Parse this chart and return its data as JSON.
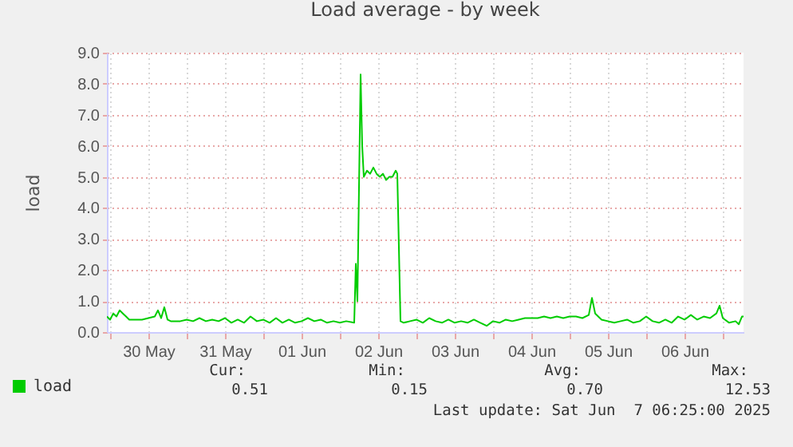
{
  "chart_data": {
    "type": "line",
    "title": "Load average - by week",
    "ylabel": "load",
    "x": [
      "2025-05-29T23:00",
      "2025-05-30T00:00",
      "2025-05-30T01:00",
      "2025-05-30T02:00",
      "2025-05-30T03:00",
      "2025-05-30T04:00",
      "2025-05-30T05:00",
      "2025-05-30T06:00",
      "2025-05-30T08:00",
      "2025-05-30T10:00",
      "2025-05-30T12:00",
      "2025-05-30T14:00",
      "2025-05-30T15:00",
      "2025-05-30T16:00",
      "2025-05-30T17:00",
      "2025-05-30T18:00",
      "2025-05-30T19:00",
      "2025-05-30T22:00",
      "2025-05-31T00:00",
      "2025-05-31T02:00",
      "2025-05-31T04:00",
      "2025-05-31T06:00",
      "2025-05-31T08:00",
      "2025-05-31T10:00",
      "2025-05-31T12:00",
      "2025-05-31T14:00",
      "2025-05-31T16:00",
      "2025-05-31T18:00",
      "2025-05-31T20:00",
      "2025-05-31T22:00",
      "2025-06-01T00:00",
      "2025-06-01T02:00",
      "2025-06-01T04:00",
      "2025-06-01T06:00",
      "2025-06-01T08:00",
      "2025-06-01T10:00",
      "2025-06-01T12:00",
      "2025-06-01T14:00",
      "2025-06-01T16:00",
      "2025-06-01T18:00",
      "2025-06-01T20:00",
      "2025-06-01T22:00",
      "2025-06-02T00:00",
      "2025-06-02T02:00",
      "2025-06-02T04:30",
      "2025-06-02T05:00",
      "2025-06-02T05:30",
      "2025-06-02T06:30",
      "2025-06-02T07:00",
      "2025-06-02T07:30",
      "2025-06-02T08:30",
      "2025-06-02T09:30",
      "2025-06-02T10:30",
      "2025-06-02T11:30",
      "2025-06-02T12:30",
      "2025-06-02T13:30",
      "2025-06-02T14:30",
      "2025-06-02T15:30",
      "2025-06-02T16:30",
      "2025-06-02T17:30",
      "2025-06-02T18:00",
      "2025-06-02T19:00",
      "2025-06-02T20:00",
      "2025-06-02T22:00",
      "2025-06-03T00:00",
      "2025-06-03T02:00",
      "2025-06-03T04:00",
      "2025-06-03T06:00",
      "2025-06-03T08:00",
      "2025-06-03T10:00",
      "2025-06-03T12:00",
      "2025-06-03T14:00",
      "2025-06-03T16:00",
      "2025-06-03T18:00",
      "2025-06-03T20:00",
      "2025-06-03T22:00",
      "2025-06-04T00:00",
      "2025-06-04T02:00",
      "2025-06-04T04:00",
      "2025-06-04T06:00",
      "2025-06-04T08:00",
      "2025-06-04T10:00",
      "2025-06-04T12:00",
      "2025-06-04T14:00",
      "2025-06-04T16:00",
      "2025-06-04T18:00",
      "2025-06-04T20:00",
      "2025-06-04T22:00",
      "2025-06-05T00:00",
      "2025-06-05T02:00",
      "2025-06-05T04:00",
      "2025-06-05T06:00",
      "2025-06-05T07:00",
      "2025-06-05T08:00",
      "2025-06-05T10:00",
      "2025-06-05T12:00",
      "2025-06-05T14:00",
      "2025-06-05T16:00",
      "2025-06-05T18:00",
      "2025-06-05T20:00",
      "2025-06-05T22:00",
      "2025-06-06T00:00",
      "2025-06-06T02:00",
      "2025-06-06T04:00",
      "2025-06-06T06:00",
      "2025-06-06T08:00",
      "2025-06-06T10:00",
      "2025-06-06T12:00",
      "2025-06-06T14:00",
      "2025-06-06T16:00",
      "2025-06-06T18:00",
      "2025-06-06T20:00",
      "2025-06-06T22:00",
      "2025-06-06T23:00",
      "2025-06-07T00:00",
      "2025-06-07T02:00",
      "2025-06-07T04:00",
      "2025-06-07T05:00",
      "2025-06-07T06:00",
      "2025-06-07T06:30"
    ],
    "series": [
      {
        "name": "load",
        "color": "#00cc00",
        "values": [
          0.5,
          0.4,
          0.6,
          0.5,
          0.7,
          0.6,
          0.5,
          0.4,
          0.4,
          0.4,
          0.45,
          0.5,
          0.7,
          0.45,
          0.8,
          0.4,
          0.35,
          0.35,
          0.4,
          0.35,
          0.45,
          0.35,
          0.4,
          0.35,
          0.45,
          0.3,
          0.4,
          0.3,
          0.5,
          0.35,
          0.4,
          0.3,
          0.45,
          0.3,
          0.4,
          0.3,
          0.35,
          0.45,
          0.35,
          0.4,
          0.3,
          0.35,
          0.3,
          0.35,
          0.3,
          2.2,
          1.0,
          8.3,
          6.0,
          5.0,
          5.2,
          5.1,
          5.3,
          5.1,
          5.0,
          5.1,
          4.9,
          5.0,
          5.0,
          5.2,
          5.1,
          0.35,
          0.3,
          0.35,
          0.4,
          0.3,
          0.45,
          0.35,
          0.3,
          0.4,
          0.3,
          0.35,
          0.3,
          0.4,
          0.3,
          0.2,
          0.35,
          0.3,
          0.4,
          0.35,
          0.4,
          0.45,
          0.45,
          0.45,
          0.5,
          0.45,
          0.5,
          0.45,
          0.5,
          0.5,
          0.45,
          0.55,
          1.1,
          0.6,
          0.4,
          0.35,
          0.3,
          0.35,
          0.4,
          0.3,
          0.35,
          0.5,
          0.35,
          0.3,
          0.4,
          0.3,
          0.5,
          0.4,
          0.55,
          0.4,
          0.5,
          0.45,
          0.6,
          0.85,
          0.45,
          0.3,
          0.35,
          0.25,
          0.5,
          0.5
        ]
      }
    ],
    "xlim": [
      "2025-05-29T23:00",
      "2025-06-07T06:30"
    ],
    "xticks": [
      {
        "value": "2025-05-30T00:00",
        "label": null
      },
      {
        "value": "2025-05-30T12:00",
        "label": "30 May"
      },
      {
        "value": "2025-05-31T00:00",
        "label": null
      },
      {
        "value": "2025-05-31T12:00",
        "label": "31 May"
      },
      {
        "value": "2025-06-01T00:00",
        "label": null
      },
      {
        "value": "2025-06-01T12:00",
        "label": "01 Jun"
      },
      {
        "value": "2025-06-02T00:00",
        "label": null
      },
      {
        "value": "2025-06-02T12:00",
        "label": "02 Jun"
      },
      {
        "value": "2025-06-03T00:00",
        "label": null
      },
      {
        "value": "2025-06-03T12:00",
        "label": "03 Jun"
      },
      {
        "value": "2025-06-04T00:00",
        "label": null
      },
      {
        "value": "2025-06-04T12:00",
        "label": "04 Jun"
      },
      {
        "value": "2025-06-05T00:00",
        "label": null
      },
      {
        "value": "2025-06-05T12:00",
        "label": "05 Jun"
      },
      {
        "value": "2025-06-06T00:00",
        "label": null
      },
      {
        "value": "2025-06-06T12:00",
        "label": "06 Jun"
      },
      {
        "value": "2025-06-07T00:00",
        "label": null
      }
    ],
    "ylim": [
      0,
      9
    ],
    "yticks": [
      {
        "value": 0,
        "label": "0.0"
      },
      {
        "value": 1,
        "label": "1.0"
      },
      {
        "value": 2,
        "label": "2.0"
      },
      {
        "value": 3,
        "label": "3.0"
      },
      {
        "value": 4,
        "label": "4.0"
      },
      {
        "value": 5,
        "label": "5.0"
      },
      {
        "value": 6,
        "label": "6.0"
      },
      {
        "value": 7,
        "label": "7.0"
      },
      {
        "value": 8,
        "label": "8.0"
      },
      {
        "value": 9,
        "label": "9.0"
      }
    ],
    "grid": true,
    "legend": "bottom left",
    "annotations": [
      "Cur:",
      "0.51",
      "Min:",
      "0.15",
      "Avg:",
      "0.70",
      "Max:",
      "12.53",
      "Last update: Sat Jun  7 06:25:00 2025"
    ]
  }
}
